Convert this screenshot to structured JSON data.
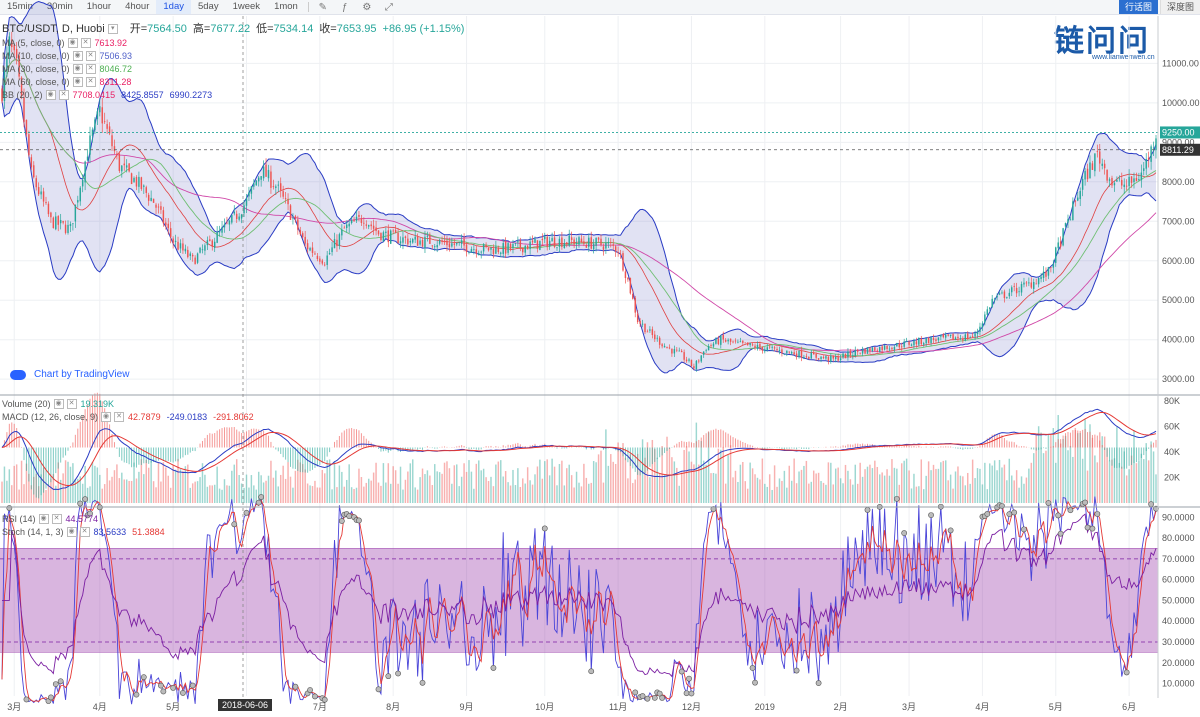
{
  "toolbar": {
    "timeframes": [
      "15min",
      "30min",
      "1hour",
      "4hour",
      "1day",
      "5day",
      "1week",
      "1mon"
    ],
    "active": "1day",
    "btn_kline": "行话图",
    "btn_depth": "深度图"
  },
  "header": {
    "symbol": "BTC/USDT, D, Huobi",
    "open_label": "开=",
    "open": "7564.50",
    "high_label": "高=",
    "high": "7677.22",
    "low_label": "低=",
    "low": "7534.14",
    "close_label": "收=",
    "close": "7653.95",
    "change": "+86.95 (+1.15%)"
  },
  "indicators": {
    "ma5": {
      "label": "MA (5, close, 0)",
      "value": "7613.92",
      "color": "#e91e63"
    },
    "ma10": {
      "label": "MA (10, close, 0)",
      "value": "7506.93",
      "color": "#4e5fc8"
    },
    "ma30": {
      "label": "MA (30, close, 0)",
      "value": "8046.72",
      "color": "#4caf50"
    },
    "ma60": {
      "label": "MA (60, close, 0)",
      "value": "8311.28",
      "color": "#e91e63"
    },
    "bb": {
      "label": "BB (20, 2)",
      "v1": "7708.0415",
      "v2": "8425.8557",
      "v3": "6990.2273"
    },
    "volume": {
      "label": "Volume (20)",
      "value": "19.319K"
    },
    "macd": {
      "label": "MACD (12, 26, close, 9)",
      "v1": "42.7879",
      "v2": "-249.0183",
      "v3": "-291.8062"
    },
    "rsi": {
      "label": "RSI (14)",
      "value": "44.5774"
    },
    "stoch": {
      "label": "Stoch (14, 1, 3)",
      "v1": "83.5633",
      "v2": "51.3884"
    }
  },
  "watermark": {
    "brand": "链问问",
    "url": "www.lianwenwen.cn"
  },
  "tv_logo": "Chart by TradingView",
  "cursor_date": "2018-06-06",
  "price_tags": {
    "last": "9250.00",
    "line": "8811.29"
  },
  "chart_data": [
    {
      "type": "candlestick",
      "title": "BTC/USDT, D, Huobi",
      "x_ticks": [
        "3月",
        "4月",
        "5月",
        "6月",
        "7月",
        "8月",
        "9月",
        "10月",
        "11月",
        "12月",
        "2019",
        "2月",
        "3月",
        "4月",
        "5月",
        "6月"
      ],
      "y_ticks": [
        3000,
        4000,
        5000,
        6000,
        7000,
        8000,
        9000,
        10000,
        11000
      ],
      "ylim": [
        2650,
        12200
      ],
      "anchors": [
        [
          0,
          10300
        ],
        [
          3,
          11500
        ],
        [
          6,
          10900
        ],
        [
          12,
          8200
        ],
        [
          20,
          7000
        ],
        [
          28,
          6800
        ],
        [
          35,
          8800
        ],
        [
          40,
          9800
        ],
        [
          48,
          8400
        ],
        [
          55,
          8000
        ],
        [
          62,
          7500
        ],
        [
          70,
          6500
        ],
        [
          78,
          6000
        ],
        [
          86,
          6500
        ],
        [
          94,
          7000
        ],
        [
          100,
          7500
        ],
        [
          106,
          8300
        ],
        [
          112,
          7900
        ],
        [
          118,
          7200
        ],
        [
          124,
          6400
        ],
        [
          132,
          6000
        ],
        [
          140,
          6800
        ],
        [
          148,
          7100
        ],
        [
          154,
          6700
        ],
        [
          160,
          6600
        ],
        [
          168,
          6500
        ],
        [
          176,
          6500
        ],
        [
          186,
          6400
        ],
        [
          196,
          6300
        ],
        [
          206,
          6300
        ],
        [
          216,
          6400
        ],
        [
          224,
          6500
        ],
        [
          232,
          6500
        ],
        [
          240,
          6450
        ],
        [
          248,
          6400
        ],
        [
          252,
          6300
        ],
        [
          256,
          5500
        ],
        [
          260,
          4500
        ],
        [
          266,
          4100
        ],
        [
          272,
          3800
        ],
        [
          278,
          3600
        ],
        [
          283,
          3300
        ],
        [
          288,
          3800
        ],
        [
          294,
          4000
        ],
        [
          300,
          3900
        ],
        [
          310,
          3800
        ],
        [
          320,
          3700
        ],
        [
          330,
          3600
        ],
        [
          340,
          3500
        ],
        [
          350,
          3700
        ],
        [
          360,
          3800
        ],
        [
          370,
          3900
        ],
        [
          380,
          4000
        ],
        [
          390,
          4050
        ],
        [
          398,
          4100
        ],
        [
          405,
          5000
        ],
        [
          412,
          5200
        ],
        [
          420,
          5400
        ],
        [
          428,
          5700
        ],
        [
          436,
          7000
        ],
        [
          442,
          8000
        ],
        [
          448,
          8700
        ],
        [
          454,
          8000
        ],
        [
          460,
          7900
        ],
        [
          466,
          8200
        ],
        [
          470,
          8800
        ],
        [
          472,
          9250
        ]
      ],
      "candle_count": 473
    },
    {
      "type": "bar",
      "title": "Volume / MACD",
      "y_ticks": [
        "20K",
        "40K",
        "60K",
        "80K"
      ],
      "ylim": [
        0,
        84000
      ]
    },
    {
      "type": "line",
      "title": "RSI / Stoch",
      "y_ticks": [
        "10.0000",
        "20.0000",
        "30.0000",
        "40.0000",
        "50.0000",
        "60.0000",
        "70.0000",
        "80.0000",
        "90.0000"
      ],
      "ylim": [
        4,
        94
      ],
      "bands": {
        "upper": 75,
        "lower": 25,
        "dashed": [
          30,
          70
        ]
      }
    }
  ]
}
